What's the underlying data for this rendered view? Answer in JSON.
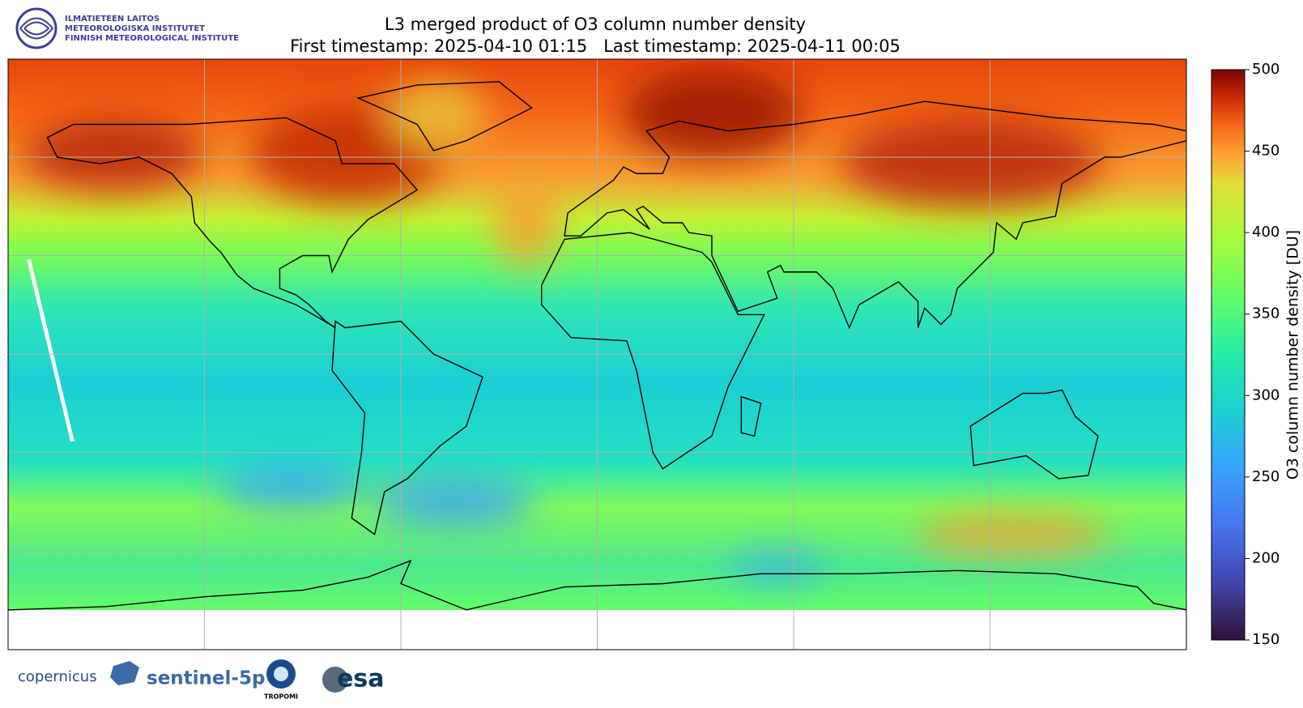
{
  "header": {
    "logo_lines": [
      "ILMATIETEEN LAITOS",
      "METEOROLOGISKA INSTITUTET",
      "FINNISH METEOROLOGICAL INSTITUTE"
    ]
  },
  "chart_data": {
    "type": "map",
    "title": "L3 merged product of O3 column number density",
    "subtitle": "First timestamp: 2025-04-10 01:15   Last timestamp: 2025-04-11 00:05",
    "grid": true,
    "colorbar": {
      "label": "O3 column number density [DU]",
      "lim": [
        150,
        500
      ],
      "ticks": [
        150,
        200,
        250,
        300,
        350,
        400,
        450,
        500
      ],
      "colormap": "turbo"
    }
  },
  "footer": {
    "logos": [
      "copernicus",
      "sentinel-5p",
      "TROPOMI",
      "esa"
    ]
  }
}
